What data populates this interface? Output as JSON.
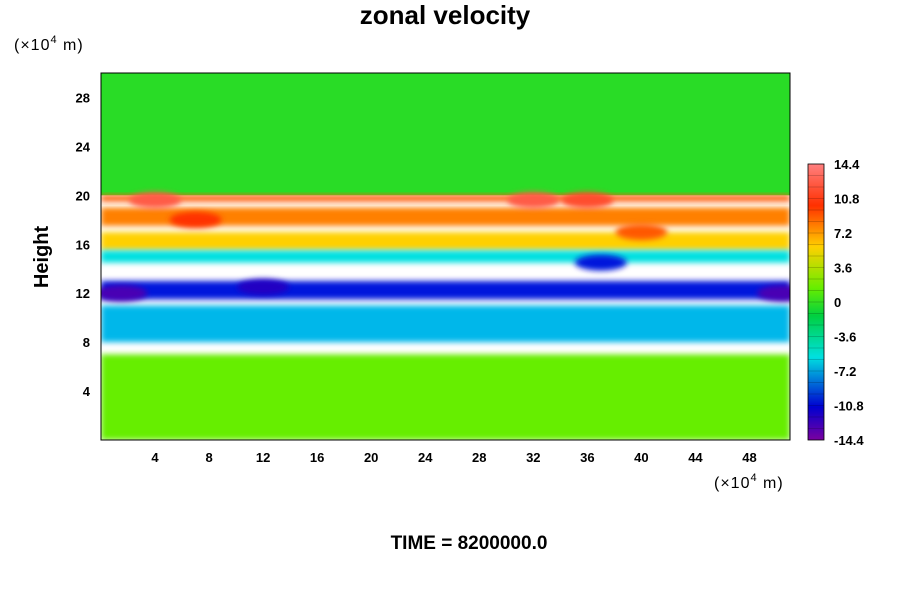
{
  "chart_data": {
    "type": "heatmap",
    "title": "zonal velocity",
    "xlabel": "",
    "ylabel": "Height",
    "x_unit": "(×10⁴ m)",
    "y_unit": "(×10⁴ m)",
    "x_range": [
      0,
      51
    ],
    "y_range": [
      0,
      30
    ],
    "x_ticks": [
      4,
      8,
      12,
      16,
      20,
      24,
      28,
      32,
      36,
      40,
      44,
      48
    ],
    "y_ticks": [
      4,
      8,
      12,
      16,
      20,
      24,
      28
    ],
    "colorbar": {
      "min": -14.4,
      "max": 14.4,
      "step": 1.2,
      "labels": [
        14.4,
        10.8,
        7.2,
        3.6,
        0,
        -3.6,
        -7.2,
        -10.8,
        -14.4
      ]
    },
    "layers": [
      {
        "y_range": [
          20,
          30
        ],
        "value": 0
      },
      {
        "y_range": [
          19.5,
          20
        ],
        "value": 8
      },
      {
        "y_range": [
          17.5,
          19
        ],
        "value": 7
      },
      {
        "y_range": [
          15.5,
          17
        ],
        "value": 5
      },
      {
        "y_range": [
          14.5,
          15.5
        ],
        "value": -4
      },
      {
        "y_range": [
          11.5,
          13
        ],
        "value": -10
      },
      {
        "y_range": [
          8,
          11
        ],
        "value": -5
      },
      {
        "y_range": [
          0,
          7
        ],
        "value": 1.5
      }
    ],
    "features": [
      {
        "x": 4,
        "y": 19.6,
        "value": 12
      },
      {
        "x": 32,
        "y": 19.6,
        "value": 12
      },
      {
        "x": 36,
        "y": 19.6,
        "value": 11
      },
      {
        "x": 40,
        "y": 17,
        "value": 8
      },
      {
        "x": 7,
        "y": 18,
        "value": 9
      },
      {
        "x": 12,
        "y": 12.5,
        "value": -12
      },
      {
        "x": 1.5,
        "y": 12,
        "value": -13
      },
      {
        "x": 50.5,
        "y": 12,
        "value": -13
      },
      {
        "x": 37,
        "y": 14.5,
        "value": -10
      }
    ],
    "footer": "TIME = 8200000.0"
  }
}
